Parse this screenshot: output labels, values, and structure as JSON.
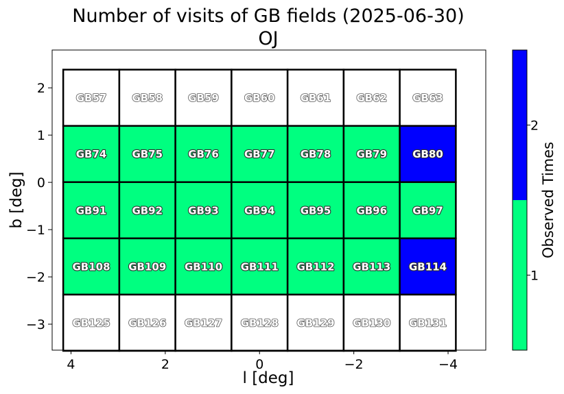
{
  "chart_data": {
    "type": "heatmap",
    "title": "Number of visits of GB fields (2025-06-30)",
    "subtitle": "OJ",
    "xlabel": "l [deg]",
    "ylabel": "b [deg]",
    "xlim": [
      4.4,
      -4.8
    ],
    "ylim": [
      -3.55,
      2.8
    ],
    "xticks": [
      4,
      2,
      0,
      -2,
      -4
    ],
    "xtick_labels": [
      "4",
      "2",
      "0",
      "−2",
      "−4"
    ],
    "yticks": [
      2,
      1,
      0,
      -1,
      -2,
      -3
    ],
    "ytick_labels": [
      "2",
      "1",
      "0",
      "−1",
      "−2",
      "−3"
    ],
    "grid": false,
    "colorbar": {
      "label": "Observed Times",
      "ticks": [
        1,
        2
      ],
      "tick_labels": [
        "1",
        "2"
      ],
      "colors": [
        "#00ff80",
        "#0000ff"
      ]
    },
    "cell_size": {
      "dl": 1.19,
      "db": 1.19
    },
    "col_centers_l": [
      3.57,
      2.38,
      1.19,
      0.0,
      -1.19,
      -2.38,
      -3.57
    ],
    "row_centers_b": [
      1.79,
      0.6,
      -0.59,
      -1.78,
      -2.97
    ],
    "colors": {
      "unobserved": "#ffffff",
      "1": "#00ff80",
      "2": "#0000ff"
    },
    "rows": [
      {
        "fields": [
          "GB57",
          "GB58",
          "GB59",
          "GB60",
          "GB61",
          "GB62",
          "GB63"
        ],
        "visits": [
          0,
          0,
          0,
          0,
          0,
          0,
          0
        ]
      },
      {
        "fields": [
          "GB74",
          "GB75",
          "GB76",
          "GB77",
          "GB78",
          "GB79",
          "GB80"
        ],
        "visits": [
          1,
          1,
          1,
          1,
          1,
          1,
          2
        ]
      },
      {
        "fields": [
          "GB91",
          "GB92",
          "GB93",
          "GB94",
          "GB95",
          "GB96",
          "GB97"
        ],
        "visits": [
          1,
          1,
          1,
          1,
          1,
          1,
          1
        ]
      },
      {
        "fields": [
          "GB108",
          "GB109",
          "GB110",
          "GB111",
          "GB112",
          "GB113",
          "GB114"
        ],
        "visits": [
          1,
          1,
          1,
          1,
          1,
          1,
          2
        ]
      },
      {
        "fields": [
          "GB125",
          "GB126",
          "GB127",
          "GB128",
          "GB129",
          "GB130",
          "GB131"
        ],
        "visits": [
          0,
          0,
          0,
          0,
          0,
          0,
          0
        ]
      }
    ]
  }
}
